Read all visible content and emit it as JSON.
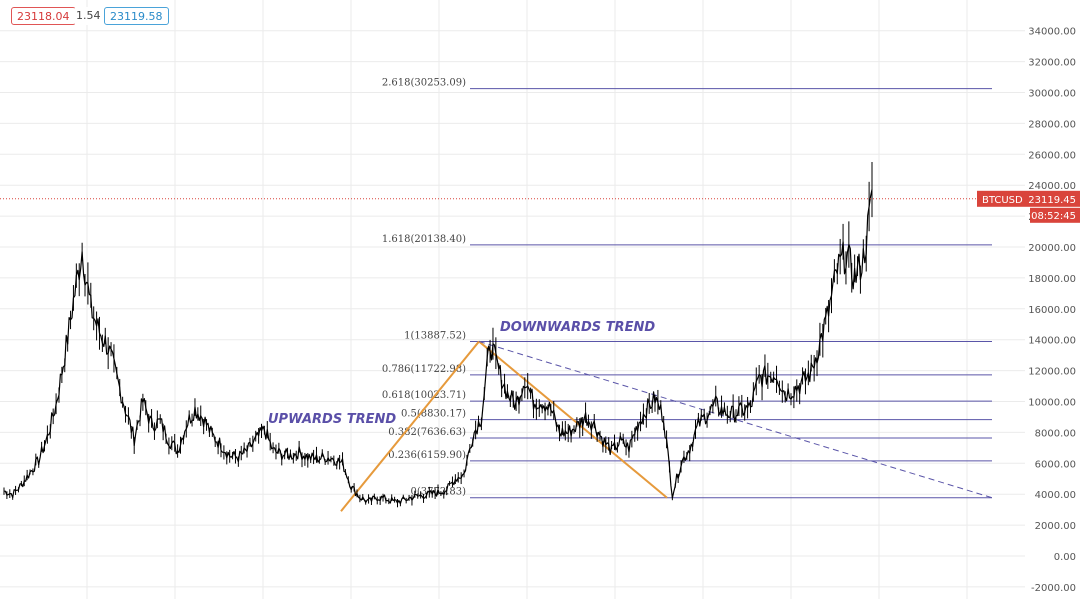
{
  "quote_bar": {
    "bid": "23118.04",
    "spread": "1.54",
    "ask": "23119.58"
  },
  "price_tag": {
    "symbol": "BTCUSD",
    "price": "23119.45",
    "countdown": "08:52:45",
    "value": 23119.45
  },
  "colors": {
    "candles": "#000000",
    "fib_lines": "#5a55a8",
    "trend_lines": "#e69a3c",
    "trend_text": "#5a4fa8",
    "price_tag": "#d9443b",
    "grid": "#ebebeb"
  },
  "chart_data": {
    "type": "line",
    "title": "",
    "xlabel": "",
    "ylabel": "",
    "ylim": [
      -2000,
      35000
    ],
    "y_ticks": [
      -2000,
      0,
      2000,
      4000,
      6000,
      8000,
      10000,
      12000,
      14000,
      16000,
      18000,
      20000,
      22000,
      24000,
      26000,
      28000,
      30000,
      32000,
      34000
    ],
    "y_tick_labels": [
      "-2000.00",
      "0.00",
      "2000.00",
      "4000.00",
      "6000.00",
      "8000.00",
      "10000.00",
      "12000.00",
      "14000.00",
      "16000.00",
      "18000.00",
      "20000.00",
      "22000.00",
      "24000.00",
      "26000.00",
      "28000.00",
      "30000.00",
      "32000.00",
      "34000.00"
    ],
    "grid": true,
    "series": [
      {
        "values": [
          4200,
          4000,
          4600,
          5400,
          6200,
          7700,
          9800,
          13000,
          16500,
          19800,
          16000,
          14500,
          13500,
          11500,
          9500,
          7600,
          10000,
          8500,
          8700,
          7500,
          6800,
          8500,
          9500,
          8900,
          7800,
          7200,
          6500,
          6400,
          6800,
          7500,
          8200,
          6800,
          6600,
          6500,
          6700,
          6400,
          6300,
          6400,
          6300,
          6000,
          4500,
          3800,
          3500,
          3800,
          3700,
          3500,
          3600,
          3800,
          3900,
          4000,
          4100,
          4300,
          5000,
          5300,
          7800,
          9000,
          13800,
          12000,
          10500,
          9800,
          11500,
          10000,
          10000,
          9500,
          8000,
          8000,
          8400,
          9000,
          8500,
          7500,
          6800,
          7400,
          7000,
          8500,
          9500,
          10200,
          9000,
          4000,
          6000,
          7000,
          8500,
          9200,
          9800,
          9300,
          9200,
          9400,
          9600,
          11500,
          11700,
          11800,
          10500,
          10800,
          11200,
          11900,
          13800,
          15800,
          18500,
          19600,
          18000,
          19200,
          23119
        ]
      }
    ],
    "fibonacci": [
      {
        "label": "2.618(30253.09)",
        "value": 30253.09
      },
      {
        "label": "1.618(20138.40)",
        "value": 20138.4
      },
      {
        "label": "1(13887.52)",
        "value": 13887.52
      },
      {
        "label": "0.786(11722.98)",
        "value": 11722.98
      },
      {
        "label": "0.618(10023.71)",
        "value": 10023.71
      },
      {
        "label": "0.5(8830.17)",
        "value": 8830.17
      },
      {
        "label": "0.382(7636.63)",
        "value": 7636.63
      },
      {
        "label": "0.236(6159.90)",
        "value": 6159.9
      },
      {
        "label": "0(3772.83)",
        "value": 3772.83
      }
    ],
    "annotations": [
      {
        "text": "UPWARDS TREND"
      },
      {
        "text": "DOWNWARDS TREND"
      }
    ]
  }
}
